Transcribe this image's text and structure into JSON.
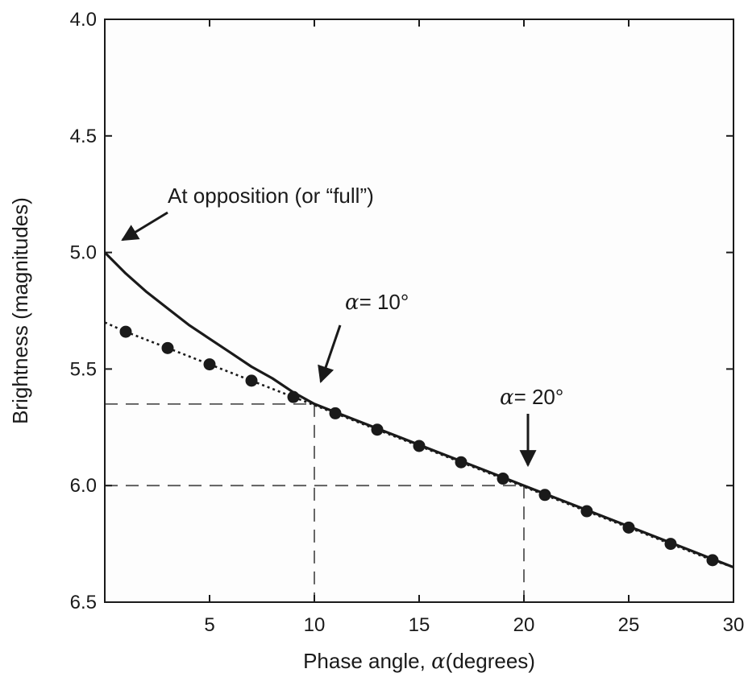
{
  "chart_data": {
    "type": "line",
    "title": "",
    "xlabel": "Phase angle,",
    "xlabel_symbol": "α",
    "xlabel_unit": "(degrees)",
    "ylabel": "Brightness (magnitudes)",
    "xlim": [
      0,
      30
    ],
    "ylim": [
      6.5,
      4.0
    ],
    "y_inverted": true,
    "grid": false,
    "x_ticks": [
      5,
      10,
      15,
      20,
      25,
      30
    ],
    "x_tick_labels": [
      "5",
      "10",
      "15",
      "20",
      "25",
      "30"
    ],
    "y_ticks": [
      4.0,
      4.5,
      5.0,
      5.5,
      6.0,
      6.5
    ],
    "y_tick_labels": [
      "4.0",
      "4.5",
      "5.0",
      "5.5",
      "6.0",
      "6.5"
    ],
    "series": [
      {
        "style": "solid",
        "x": [
          0,
          1,
          2,
          3,
          4,
          5,
          6,
          7,
          8,
          9,
          10,
          12,
          14,
          16,
          18,
          20,
          22,
          24,
          26,
          28,
          30
        ],
        "y": [
          5.0,
          5.09,
          5.17,
          5.24,
          5.31,
          5.37,
          5.43,
          5.49,
          5.54,
          5.6,
          5.65,
          5.72,
          5.79,
          5.86,
          5.93,
          6.0,
          6.07,
          6.14,
          6.21,
          6.28,
          6.35
        ]
      },
      {
        "style": "dotted-with-markers",
        "x": [
          0,
          1,
          3,
          5,
          7,
          9,
          11,
          13,
          15,
          17,
          19,
          21,
          23,
          25,
          27,
          29,
          30
        ],
        "y": [
          5.3,
          5.34,
          5.41,
          5.48,
          5.55,
          5.62,
          5.69,
          5.76,
          5.83,
          5.9,
          5.97,
          6.04,
          6.11,
          6.18,
          6.25,
          6.32,
          6.35
        ],
        "markers_x": [
          1,
          3,
          5,
          7,
          9,
          11,
          13,
          15,
          17,
          19,
          21,
          23,
          25,
          27,
          29
        ],
        "markers_y": [
          5.34,
          5.41,
          5.48,
          5.55,
          5.62,
          5.69,
          5.76,
          5.83,
          5.9,
          5.97,
          6.04,
          6.11,
          6.18,
          6.25,
          6.32
        ]
      }
    ],
    "reference_lines": [
      {
        "x": 10,
        "y": 5.65
      },
      {
        "x": 20,
        "y": 6.0
      }
    ],
    "annotations": [
      {
        "text": "At opposition (or “full”)",
        "points_to": {
          "x": 0,
          "y": 5.0
        }
      },
      {
        "symbol": "α",
        "text": "= 10°",
        "points_to": {
          "x": 10,
          "y": 5.65
        }
      },
      {
        "symbol": "α",
        "text": "= 20°",
        "points_to": {
          "x": 20,
          "y": 6.0
        }
      }
    ]
  }
}
